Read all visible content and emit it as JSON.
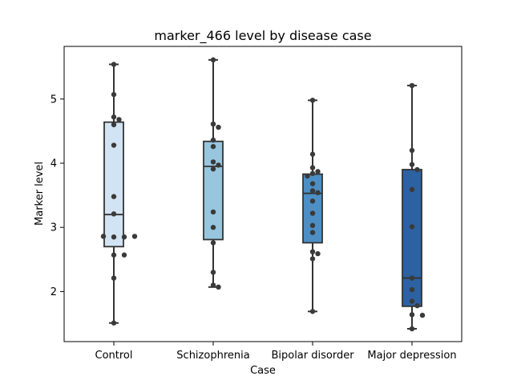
{
  "chart_data": {
    "type": "box",
    "title": "marker_466 level by disease case",
    "xlabel": "Case",
    "ylabel": "Marker level",
    "ylim": [
      1.22,
      5.82
    ],
    "yticks": [
      2,
      3,
      4,
      5
    ],
    "grid": false,
    "categories": [
      "Control",
      "Schizophrenia",
      "Bipolar disorder",
      "Major depression"
    ],
    "colors": {
      "Control": "#d2e3f3",
      "Schizophrenia": "#98c6df",
      "Bipolar disorder": "#4d8fc5",
      "Major depression": "#2c62a2"
    },
    "edge_color": "#333333",
    "point_color": "#3a3a3a",
    "boxes": [
      {
        "category": "Control",
        "whisker_low": 1.51,
        "q1": 2.7,
        "median": 3.2,
        "q3": 4.64,
        "whisker_high": 5.54,
        "points": [
          5.54,
          5.07,
          4.72,
          4.68,
          4.6,
          4.28,
          3.48,
          3.21,
          2.85,
          2.85,
          2.86,
          2.86,
          2.57,
          2.57,
          2.21,
          1.51
        ]
      },
      {
        "category": "Schizophrenia",
        "whisker_low": 2.07,
        "q1": 2.81,
        "median": 3.95,
        "q3": 4.34,
        "whisker_high": 5.61,
        "points": [
          5.61,
          4.61,
          4.56,
          4.36,
          4.26,
          4.02,
          3.97,
          3.91,
          3.24,
          3.0,
          2.76,
          2.3,
          2.1,
          2.07
        ]
      },
      {
        "category": "Bipolar disorder",
        "whisker_low": 1.69,
        "q1": 2.76,
        "median": 3.53,
        "q3": 3.83,
        "whisker_high": 4.98,
        "points": [
          4.98,
          4.14,
          3.93,
          3.87,
          3.84,
          3.8,
          3.68,
          3.57,
          3.54,
          3.41,
          3.22,
          3.03,
          2.92,
          2.62,
          2.59,
          2.51,
          1.69
        ]
      },
      {
        "category": "Major depression",
        "whisker_low": 1.42,
        "q1": 1.77,
        "median": 2.21,
        "q3": 3.9,
        "whisker_high": 5.21,
        "points": [
          5.21,
          4.2,
          3.98,
          3.9,
          3.59,
          3.01,
          2.21,
          2.03,
          1.85,
          1.78,
          1.64,
          1.63,
          1.42
        ]
      }
    ]
  }
}
